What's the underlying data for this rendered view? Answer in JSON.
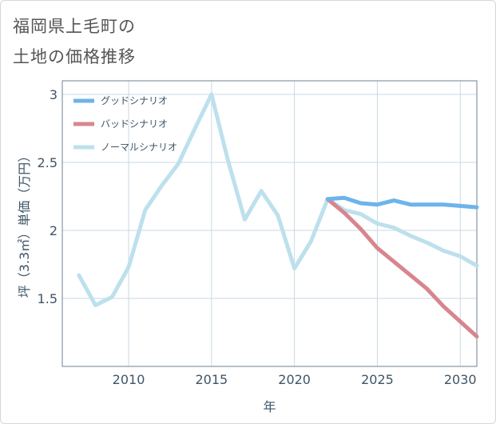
{
  "title_line1": "福岡県上毛町の",
  "title_line2": "土地の価格推移",
  "chart_data": {
    "type": "line",
    "xlabel": "年",
    "ylabel": "坪（3.3㎡）単価（万円）",
    "xlim": [
      2006,
      2031
    ],
    "ylim": [
      1.0,
      3.1
    ],
    "x_ticks": [
      2010,
      2015,
      2020,
      2025,
      2030
    ],
    "y_ticks": [
      1.5,
      2,
      2.5,
      3
    ],
    "x_tick_labels": [
      "2010",
      "2015",
      "2020",
      "2025",
      "2030"
    ],
    "y_tick_labels": [
      "1.5",
      "2",
      "2.5",
      "3"
    ],
    "grid": true,
    "legend_position": "top-left",
    "series": [
      {
        "name": "グッドシナリオ",
        "color": "#6cb4ea",
        "x": [
          2022,
          2023,
          2024,
          2025,
          2026,
          2027,
          2028,
          2029,
          2030,
          2031
        ],
        "y": [
          2.23,
          2.24,
          2.2,
          2.19,
          2.22,
          2.19,
          2.19,
          2.19,
          2.18,
          2.17
        ]
      },
      {
        "name": "バッドシナリオ",
        "color": "#d7868e",
        "x": [
          2022,
          2023,
          2024,
          2025,
          2026,
          2027,
          2028,
          2029,
          2030,
          2031
        ],
        "y": [
          2.23,
          2.13,
          2.01,
          1.87,
          1.77,
          1.67,
          1.57,
          1.44,
          1.33,
          1.22
        ]
      },
      {
        "name": "ノーマルシナリオ",
        "color": "#bde0ed",
        "x": [
          2007,
          2008,
          2009,
          2010,
          2011,
          2012,
          2013,
          2014,
          2015,
          2016,
          2017,
          2018,
          2019,
          2020,
          2021,
          2022,
          2023,
          2024,
          2025,
          2026,
          2027,
          2028,
          2029,
          2030,
          2031
        ],
        "y": [
          1.67,
          1.45,
          1.51,
          1.73,
          2.15,
          2.33,
          2.49,
          2.75,
          3.0,
          2.51,
          2.08,
          2.29,
          2.11,
          1.72,
          1.92,
          2.23,
          2.15,
          2.12,
          2.05,
          2.02,
          1.96,
          1.91,
          1.85,
          1.81,
          1.74
        ]
      }
    ]
  }
}
